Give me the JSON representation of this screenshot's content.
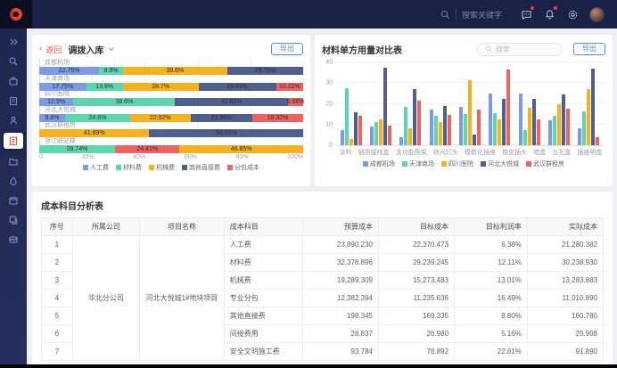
{
  "topbar": {
    "search_placeholder": "搜索关键字",
    "icons": [
      "message-icon",
      "bell-icon",
      "gear-icon",
      "avatar"
    ]
  },
  "sidebar": {
    "items": [
      "expand",
      "search",
      "briefcase",
      "clipboard",
      "user",
      "cost-report-active",
      "folder",
      "droplet",
      "calendar",
      "copy",
      "layers"
    ]
  },
  "left_panel": {
    "back_label": "返回",
    "title": "调拨入库",
    "export_label": "导出"
  },
  "right_panel": {
    "title": "材料单方用量对比表",
    "search_placeholder": "搜索",
    "export_label": "导出"
  },
  "chart_data": [
    {
      "type": "bar",
      "orientation": "horizontal-stacked",
      "title": "调拨入库",
      "categories": [
        "成都机场",
        "天津商场",
        "四川医院",
        "河北大悦城",
        "武汉群租房",
        "浙江联站楼"
      ],
      "series_names": [
        "人工费",
        "材料费",
        "机械费",
        "其他直接费",
        "分包成本"
      ],
      "series_colors": [
        "#7b9be6",
        "#5cd6ae",
        "#f7b01e",
        "#4f608e",
        "#ee6360"
      ],
      "bars": [
        [
          [
            0,
            22.75
          ],
          [
            1,
            8.9
          ],
          [
            2,
            39.6
          ],
          [
            3,
            28.75
          ]
        ],
        [
          [
            0,
            17.75
          ],
          [
            1,
            13.9
          ],
          [
            2,
            28.7
          ],
          [
            3,
            29.43
          ],
          [
            4,
            10.22
          ]
        ],
        [
          [
            0,
            12.9
          ],
          [
            1,
            38.6
          ],
          [
            3,
            42.82
          ],
          [
            4,
            5.68
          ]
        ],
        [
          [
            0,
            9.8
          ],
          [
            1,
            24.6
          ],
          [
            2,
            22.92
          ],
          [
            3,
            23.36
          ],
          [
            4,
            19.32
          ]
        ],
        [
          [
            2,
            41.69
          ],
          [
            3,
            58.31
          ]
        ],
        [
          [
            1,
            28.74
          ],
          [
            4,
            24.41
          ],
          [
            2,
            46.85
          ]
        ]
      ],
      "xticks": [
        "0",
        "20%",
        "40%",
        "60%",
        "80%",
        "100%"
      ],
      "xlim": [
        0,
        100
      ],
      "legend_position": "bottom"
    },
    {
      "type": "bar",
      "orientation": "vertical-grouped",
      "title": "材料单方用量对比表",
      "categories": [
        "涂料",
        "钢质接线盒",
        "多功能爬架",
        "铁间灯头",
        "模数化插座",
        "橡皮插头",
        "暗盒",
        "五孔盒",
        "插座明盒"
      ],
      "series": [
        {
          "name": "成都机场",
          "color": "#7b9be6",
          "values": [
            7.5,
            9,
            4,
            17,
            18.5,
            25,
            25,
            12,
            8
          ]
        },
        {
          "name": "天津商场",
          "color": "#5cd6ae",
          "values": [
            27.5,
            11,
            18.5,
            14,
            15,
            15.5,
            7.5,
            14,
            16.5
          ]
        },
        {
          "name": "四川医院",
          "color": "#f7b01e",
          "values": [
            3,
            12.5,
            8,
            11,
            31.5,
            12.5,
            18,
            20,
            27
          ]
        },
        {
          "name": "河北大悦城",
          "color": "#4f608e",
          "values": [
            16,
            37.5,
            27,
            19,
            5,
            22.5,
            22.5,
            24.5,
            37
          ]
        },
        {
          "name": "武汉群租房",
          "color": "#ee6360",
          "values": [
            14,
            9.5,
            21.5,
            14.5,
            17,
            36.5,
            12.5,
            17.5,
            4
          ]
        }
      ],
      "yticks": [
        0,
        10,
        20,
        30,
        40
      ],
      "ylim": [
        0,
        40
      ],
      "grid": true,
      "legend_position": "bottom"
    }
  ],
  "table": {
    "title": "成本科目分析表",
    "columns": [
      "序号",
      "所属公司",
      "项目名称",
      "成本科目",
      "预算成本",
      "目标成本",
      "目标利润率",
      "实际成本"
    ],
    "company": "华北分公司",
    "project": "河北大悦城1#地块项目",
    "rows": [
      [
        "1",
        "人工费",
        "23,890.230",
        "22,370.473",
        "6.38%",
        "21,280.382"
      ],
      [
        "2",
        "材料费",
        "32,378.896",
        "29,239.245",
        "12.11%",
        "30,238.930"
      ],
      [
        "3",
        "机械费",
        "19,289.309",
        "15,273.483",
        "13.01%",
        "13,283.883"
      ],
      [
        "4",
        "专业分包",
        "12,382.394",
        "11,235.636",
        "16.49%",
        "11,010.890"
      ],
      [
        "5",
        "其他直接费",
        "198.345",
        "169.335",
        "8.80%",
        "160.780"
      ],
      [
        "6",
        "间接费用",
        "28.837",
        "26.980",
        "5.16%",
        "25.908"
      ],
      [
        "7",
        "安全文明施工费",
        "93.784",
        "78.892",
        "22.81%",
        "91.890"
      ]
    ]
  },
  "colors": {
    "navbar": "#1a2147",
    "accent_red": "#f0544a",
    "accent_blue": "#4c8fe0",
    "palette": [
      "#7b9be6",
      "#5cd6ae",
      "#f7b01e",
      "#4f608e",
      "#ee6360"
    ]
  }
}
